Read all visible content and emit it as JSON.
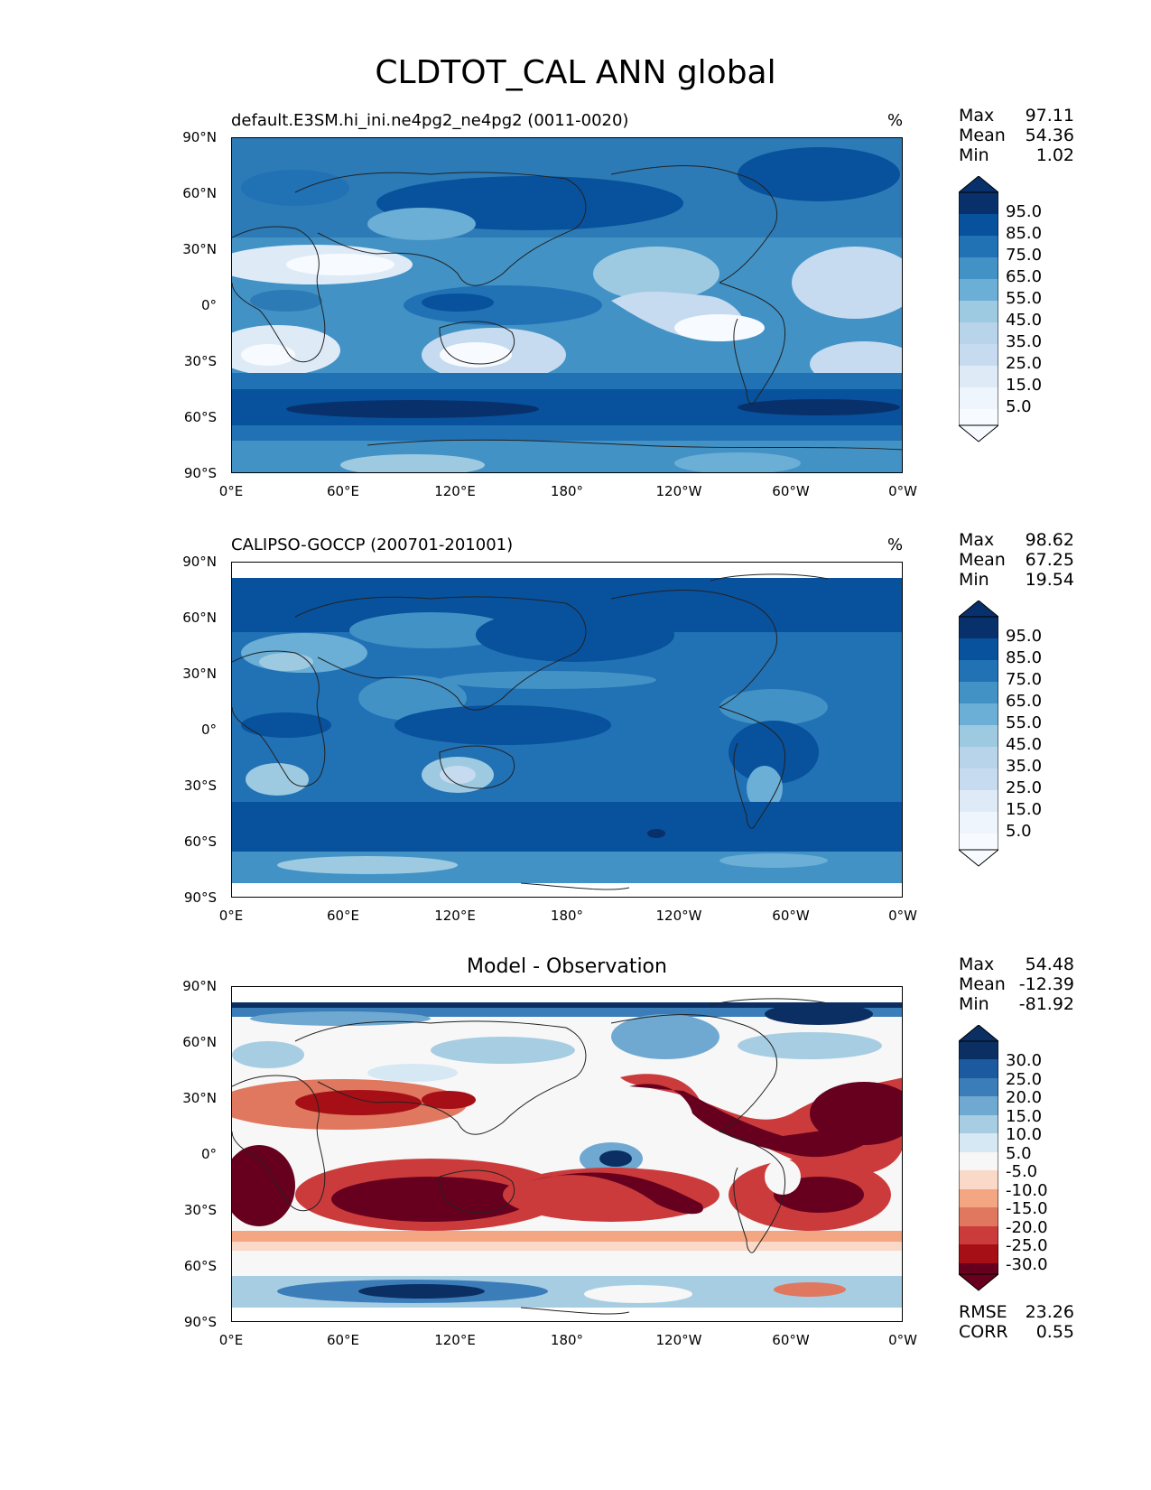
{
  "title": "CLDTOT_CAL ANN global",
  "x_ticks": [
    "0°E",
    "60°E",
    "120°E",
    "180°",
    "120°W",
    "60°W",
    "0°W"
  ],
  "y_ticks": [
    "90°N",
    "60°N",
    "30°N",
    "0°",
    "30°S",
    "60°S",
    "90°S"
  ],
  "colors": {
    "blues": [
      "#f7fbff",
      "#deebf7",
      "#c6dbef",
      "#b7d4ea",
      "#9ecae1",
      "#6baed6",
      "#4292c6",
      "#2c7bb6",
      "#2171b5",
      "#08519c",
      "#08306b"
    ],
    "diverging": [
      "#67001f",
      "#a50f15",
      "#cb3b3b",
      "#e0775f",
      "#f4a582",
      "#fbd9c8",
      "#f7f7f7",
      "#d6e8f3",
      "#a7cde3",
      "#6fa9d1",
      "#3b7db8",
      "#1b5a9f",
      "#0b2f63"
    ]
  },
  "panels": [
    {
      "id": "model",
      "title": "default.E3SM.hi_ini.ne4pg2_ne4pg2 (0011-0020)",
      "units": "%",
      "stats": {
        "max_label": "Max",
        "max": "97.11",
        "mean_label": "Mean",
        "mean": "54.36",
        "min_label": "Min",
        "min": "1.02"
      },
      "colorbar": {
        "levels": [
          "95.0",
          "85.0",
          "75.0",
          "65.0",
          "55.0",
          "45.0",
          "35.0",
          "25.0",
          "15.0",
          "5.0"
        ]
      }
    },
    {
      "id": "obs",
      "title": "CALIPSO-GOCCP (200701-201001)",
      "units": "%",
      "stats": {
        "max_label": "Max",
        "max": "98.62",
        "mean_label": "Mean",
        "mean": "67.25",
        "min_label": "Min",
        "min": "19.54"
      },
      "colorbar": {
        "levels": [
          "95.0",
          "85.0",
          "75.0",
          "65.0",
          "55.0",
          "45.0",
          "35.0",
          "25.0",
          "15.0",
          "5.0"
        ]
      }
    },
    {
      "id": "diff",
      "title": "Model - Observation",
      "units": "",
      "stats": {
        "max_label": "Max",
        "max": "54.48",
        "mean_label": "Mean",
        "mean": "-12.39",
        "min_label": "Min",
        "min": "-81.92"
      },
      "colorbar": {
        "levels": [
          "30.0",
          "25.0",
          "20.0",
          "15.0",
          "10.0",
          "5.0",
          "-5.0",
          "-10.0",
          "-15.0",
          "-20.0",
          "-25.0",
          "-30.0"
        ]
      },
      "metrics": {
        "rmse_label": "RMSE",
        "rmse": "23.26",
        "corr_label": "CORR",
        "corr": "0.55"
      }
    }
  ]
}
